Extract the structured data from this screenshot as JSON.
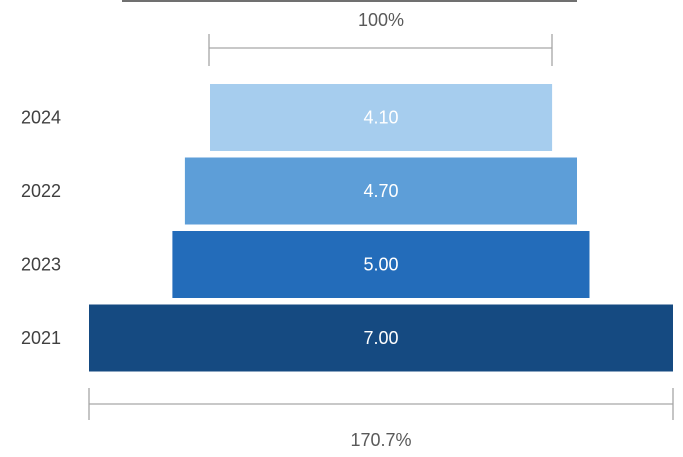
{
  "chart_data": {
    "type": "bar",
    "subtype": "funnel",
    "categories": [
      "2024",
      "2022",
      "2023",
      "2021"
    ],
    "values": [
      4.1,
      4.7,
      5.0,
      7.0
    ],
    "value_labels": [
      "4.10",
      "4.70",
      "5.00",
      "7.00"
    ],
    "colors": [
      "#a6cdee",
      "#5d9ed8",
      "#236cba",
      "#154a81"
    ],
    "top_dimension_label": "100%",
    "bottom_dimension_label": "170.7%",
    "label_color": "#ffffff",
    "category_label_color": "#404040",
    "dimension_line_color": "#a6a6a6",
    "grid": false,
    "legend": "none"
  }
}
